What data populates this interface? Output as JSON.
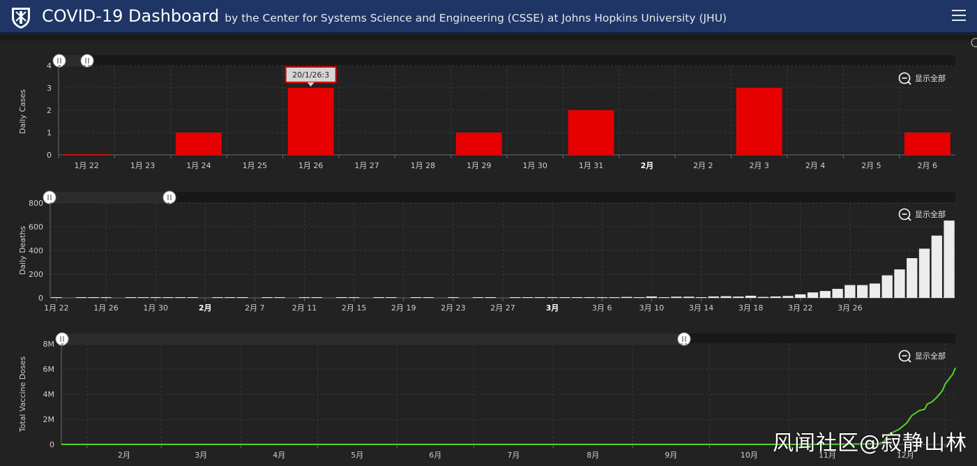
{
  "header": {
    "title": "COVID-19 Dashboard",
    "subtitle": "by the Center for Systems Science and Engineering (CSSE) at Johns Hopkins University (JHU)",
    "logo_icon": "jhu-shield-icon",
    "menu_icon": "hamburger-menu-icon"
  },
  "colors": {
    "header_bg": "#1e3566",
    "panel_bg": "#222222",
    "cases_bar": "#e60000",
    "deaths_bar": "#ececec",
    "vaccine_line": "#55d42a",
    "tooltip_border": "#e60000"
  },
  "zoom_label": "显示全部",
  "watermark": "风闻社区@寂静山林",
  "chart_data": [
    {
      "type": "bar",
      "ylabel": "Daily Cases",
      "ylim": [
        0,
        4
      ],
      "yticks": [
        "0",
        "1",
        "2",
        "3",
        "4"
      ],
      "categories": [
        "1月 22",
        "1月 23",
        "1月 24",
        "1月 25",
        "1月 26",
        "1月 27",
        "1月 28",
        "1月 29",
        "1月 30",
        "1月 31",
        "2月",
        "2月 2",
        "2月 3",
        "2月 4",
        "2月 5",
        "2月 6"
      ],
      "bold_categories": [
        "2月"
      ],
      "values": [
        0,
        0,
        1,
        0,
        3,
        0,
        0,
        1,
        0,
        2,
        0,
        0,
        3,
        0,
        0,
        1
      ],
      "tooltip": {
        "category": "1月 26",
        "text": "20/1/26:3"
      },
      "grid": true
    },
    {
      "type": "bar",
      "ylabel": "Daily Deaths",
      "ylim": [
        0,
        800
      ],
      "yticks": [
        "0",
        "200",
        "400",
        "600",
        "800"
      ],
      "tick_labels": [
        "1月 22",
        "1月 26",
        "1月 30",
        "2月",
        "2月 7",
        "2月 11",
        "2月 15",
        "2月 19",
        "2月 23",
        "2月 27",
        "3月",
        "3月 6",
        "3月 10",
        "3月 14",
        "3月 18",
        "3月 22",
        "3月 26"
      ],
      "bold_tick_labels": [
        "2月",
        "3月"
      ],
      "start_date": "1月 22",
      "values": [
        2,
        0,
        4,
        1,
        3,
        0,
        2,
        1,
        4,
        1,
        3,
        2,
        0,
        1,
        3,
        1,
        0,
        2,
        1,
        0,
        3,
        1,
        0,
        2,
        1,
        0,
        1,
        2,
        0,
        3,
        1,
        0,
        1,
        0,
        2,
        1,
        0,
        1,
        2,
        3,
        1,
        2,
        4,
        6,
        4,
        3,
        8,
        4,
        12,
        2,
        10,
        10,
        1,
        12,
        14,
        11,
        18,
        8,
        12,
        16,
        30,
        46,
        58,
        76,
        108,
        108,
        121,
        190,
        240,
        335,
        415,
        525,
        652
      ],
      "grid": true
    },
    {
      "type": "line",
      "ylabel": "Total Vaccine Doses",
      "ylim": [
        0,
        8000000
      ],
      "yticks": [
        "0",
        "2M",
        "4M",
        "6M",
        "8M"
      ],
      "tick_labels": [
        "2月",
        "3月",
        "4月",
        "5月",
        "6月",
        "7月",
        "8月",
        "9月",
        "10月",
        "11月",
        "12月"
      ],
      "series": [
        {
          "x": [
            0,
            300,
            319,
            321,
            323,
            325,
            327,
            330,
            332,
            335,
            337,
            338,
            340,
            342,
            344,
            345,
            348,
            349
          ],
          "y": [
            0,
            0,
            50000,
            200000,
            800000,
            1000000,
            1200000,
            1700000,
            2300000,
            2700000,
            2800000,
            3200000,
            3400000,
            3800000,
            4300000,
            4800000,
            5600000,
            6100000
          ]
        }
      ],
      "grid": true
    }
  ]
}
